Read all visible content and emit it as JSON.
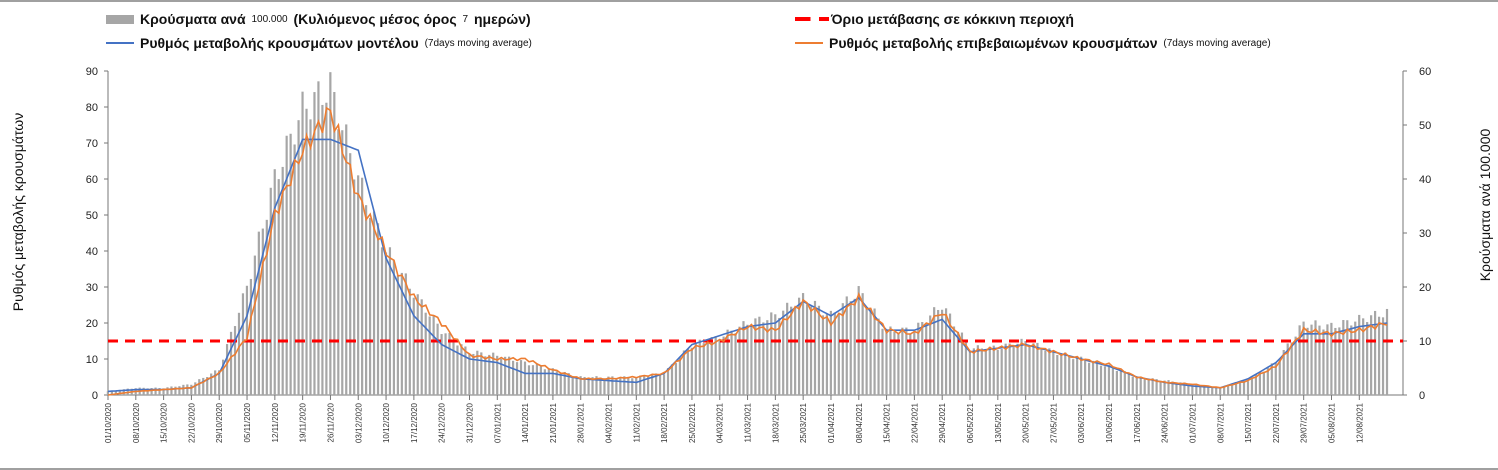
{
  "chart_data": {
    "type": "bar+line",
    "legend": [
      {
        "name": "Κρούσματα ανά",
        "small": "100.000",
        "tail": "(Κυλιόμενος μέσος όρος",
        "small2": "7",
        "tail2": "ημερών)",
        "small3": ")",
        "color": "#a6a6a6",
        "kind": "bar"
      },
      {
        "name": "Όριο μετάβασης σε κόκκινη περιοχή",
        "color": "#ff0000",
        "kind": "dashed"
      },
      {
        "name": "Ρυθμός μεταβολής κρουσμάτων μοντέλου",
        "small": "(7days moving average)",
        "color": "#4472c4",
        "kind": "line"
      },
      {
        "name": "Ρυθμός μεταβολής επιβεβαιωμένων κρουσμάτων",
        "small": "(7days moving average)",
        "color": "#ed7d31",
        "kind": "line"
      }
    ],
    "ylabel_left": "Ρυθμός μεταβολής κρουσμάτων",
    "ylabel_right": "Κρούσματα ανά 100.000",
    "ylim_left": [
      0,
      90
    ],
    "yticks_left": [
      0,
      10,
      20,
      30,
      40,
      50,
      60,
      70,
      80,
      90
    ],
    "ylim_right": [
      0,
      60
    ],
    "yticks_right": [
      0,
      10,
      20,
      30,
      40,
      50,
      60
    ],
    "threshold": 15,
    "x_days_range": [
      0,
      326
    ],
    "x_tick_labels": [
      "01/10/2020",
      "08/10/2020",
      "15/10/2020",
      "22/10/2020",
      "29/10/2020",
      "05/11/2020",
      "12/11/2020",
      "19/11/2020",
      "26/11/2020",
      "03/12/2020",
      "10/12/2020",
      "17/12/2020",
      "24/12/2020",
      "31/12/2020",
      "07/01/2021",
      "14/01/2021",
      "21/01/2021",
      "28/01/2021",
      "04/02/2021",
      "11/02/2021",
      "18/02/2021",
      "25/02/2021",
      "04/03/2021",
      "11/03/2021",
      "18/03/2021",
      "25/03/2021",
      "01/04/2021",
      "08/04/2021",
      "15/04/2021",
      "22/04/2021",
      "29/04/2021",
      "06/05/2021",
      "13/05/2021",
      "20/05/2021",
      "27/05/2021",
      "03/06/2021",
      "10/06/2021",
      "17/06/2021",
      "24/06/2021",
      "01/07/2021",
      "08/07/2021",
      "15/07/2021",
      "22/07/2021",
      "29/07/2021",
      "05/08/2021",
      "12/08/2021"
    ],
    "sample_days": [
      0,
      7,
      14,
      21,
      28,
      35,
      42,
      49,
      56,
      63,
      70,
      77,
      84,
      91,
      98,
      105,
      112,
      119,
      126,
      133,
      140,
      147,
      154,
      161,
      168,
      175,
      182,
      189,
      196,
      203,
      210,
      217,
      224,
      231,
      238,
      245,
      252,
      259,
      266,
      273,
      280,
      287,
      294,
      301,
      308,
      315,
      322
    ],
    "cases_per_100k": [
      0.7,
      1.3,
      1.3,
      2,
      4.7,
      20,
      40,
      53,
      57,
      40,
      27,
      19,
      12,
      8,
      7.3,
      6,
      4.7,
      3.3,
      3.3,
      3.3,
      4,
      9.3,
      10.7,
      13.3,
      14.7,
      18,
      14.7,
      19.3,
      12,
      12,
      16.7,
      8.7,
      8.7,
      10,
      8,
      6.7,
      5.3,
      3.3,
      2.7,
      2,
      1.3,
      2.7,
      6,
      13.3,
      12.7,
      14,
      15.3
    ],
    "model_rate": [
      1,
      1.5,
      1.5,
      2,
      6,
      22,
      52,
      71,
      71,
      68,
      38,
      22,
      14,
      10,
      9,
      6,
      6,
      4.5,
      4,
      3.5,
      6,
      14,
      16.5,
      19,
      20,
      26,
      22,
      27,
      18,
      18,
      21,
      12,
      13,
      14,
      12,
      10,
      8,
      5,
      3.5,
      2.5,
      2,
      4.5,
      9,
      17,
      17,
      19,
      20
    ],
    "confirmed_rate": [
      0,
      1,
      1.5,
      2,
      6,
      16,
      50,
      68,
      79,
      55,
      40,
      27,
      20,
      11,
      10,
      10,
      7,
      4.5,
      4.5,
      5,
      6,
      13,
      15,
      19,
      18,
      26,
      20,
      27,
      18,
      17,
      23,
      12,
      13,
      14,
      12,
      10,
      8.5,
      5,
      3.5,
      3,
      2,
      4,
      8,
      18,
      17,
      18,
      20
    ]
  }
}
